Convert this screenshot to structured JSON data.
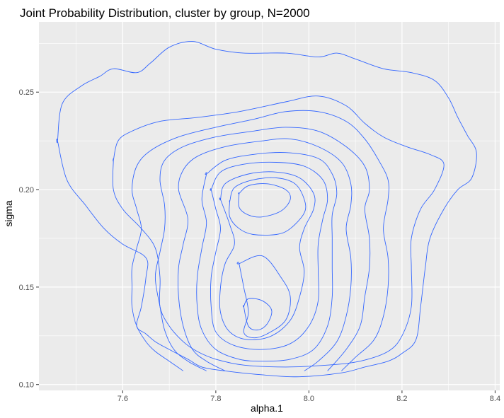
{
  "chart_data": {
    "type": "contour",
    "title": "Joint Probability Distribution, cluster by group, N=2000",
    "xlabel": "alpha.1",
    "ylabel": "sigma",
    "xlim": [
      7.42,
      8.41
    ],
    "ylim": [
      0.097,
      0.286
    ],
    "x_ticks": [
      7.6,
      7.8,
      8.0,
      8.2,
      8.4
    ],
    "x_tick_labels": [
      "7.6",
      "7.8",
      "8.0",
      "8.2",
      "8.4"
    ],
    "y_ticks": [
      0.1,
      0.15,
      0.2,
      0.25
    ],
    "y_tick_labels": [
      "0.10",
      "0.15",
      "0.20",
      "0.25"
    ],
    "grid": true,
    "background": "#ebebeb",
    "grid_color": "#ffffff",
    "line_color": "#3366ff",
    "contours": [
      {
        "closed": true,
        "points": [
          [
            7.46,
            0.225
          ],
          [
            7.47,
            0.244
          ],
          [
            7.51,
            0.253
          ],
          [
            7.55,
            0.258
          ],
          [
            7.58,
            0.262
          ],
          [
            7.63,
            0.26
          ],
          [
            7.66,
            0.265
          ],
          [
            7.7,
            0.273
          ],
          [
            7.75,
            0.276
          ],
          [
            7.8,
            0.272
          ],
          [
            7.86,
            0.27
          ],
          [
            7.95,
            0.27
          ],
          [
            8.02,
            0.268
          ],
          [
            8.06,
            0.27
          ],
          [
            8.1,
            0.267
          ],
          [
            8.16,
            0.262
          ],
          [
            8.22,
            0.26
          ],
          [
            8.27,
            0.256
          ],
          [
            8.3,
            0.247
          ],
          [
            8.32,
            0.237
          ],
          [
            8.34,
            0.228
          ],
          [
            8.36,
            0.219
          ],
          [
            8.35,
            0.206
          ],
          [
            8.32,
            0.2
          ],
          [
            8.29,
            0.19
          ],
          [
            8.26,
            0.175
          ],
          [
            8.25,
            0.16
          ],
          [
            8.24,
            0.14
          ],
          [
            8.23,
            0.123
          ],
          [
            8.2,
            0.116
          ],
          [
            8.17,
            0.112
          ],
          [
            8.12,
            0.109
          ],
          [
            8.07,
            0.106
          ],
          [
            7.98,
            0.104
          ],
          [
            7.9,
            0.105
          ],
          [
            7.82,
            0.107
          ],
          [
            7.77,
            0.109
          ],
          [
            7.74,
            0.113
          ],
          [
            7.7,
            0.118
          ],
          [
            7.67,
            0.122
          ],
          [
            7.65,
            0.126
          ],
          [
            7.63,
            0.13
          ],
          [
            7.64,
            0.14
          ],
          [
            7.65,
            0.155
          ],
          [
            7.65,
            0.165
          ],
          [
            7.6,
            0.172
          ],
          [
            7.56,
            0.18
          ],
          [
            7.52,
            0.192
          ],
          [
            7.48,
            0.205
          ],
          [
            7.46,
            0.225
          ]
        ]
      },
      {
        "closed": true,
        "points": [
          [
            7.58,
            0.215
          ],
          [
            7.59,
            0.225
          ],
          [
            7.62,
            0.23
          ],
          [
            7.68,
            0.235
          ],
          [
            7.76,
            0.237
          ],
          [
            7.85,
            0.24
          ],
          [
            7.95,
            0.245
          ],
          [
            8.02,
            0.248
          ],
          [
            8.08,
            0.243
          ],
          [
            8.12,
            0.234
          ],
          [
            8.16,
            0.227
          ],
          [
            8.21,
            0.222
          ],
          [
            8.26,
            0.218
          ],
          [
            8.29,
            0.213
          ],
          [
            8.27,
            0.2
          ],
          [
            8.24,
            0.19
          ],
          [
            8.22,
            0.175
          ],
          [
            8.22,
            0.16
          ],
          [
            8.22,
            0.14
          ],
          [
            8.2,
            0.125
          ],
          [
            8.17,
            0.117
          ],
          [
            8.11,
            0.112
          ],
          [
            8.04,
            0.11
          ],
          [
            7.95,
            0.109
          ],
          [
            7.86,
            0.11
          ],
          [
            7.8,
            0.113
          ],
          [
            7.76,
            0.117
          ],
          [
            7.73,
            0.122
          ],
          [
            7.7,
            0.13
          ],
          [
            7.68,
            0.14
          ],
          [
            7.68,
            0.155
          ],
          [
            7.67,
            0.17
          ],
          [
            7.64,
            0.18
          ],
          [
            7.6,
            0.19
          ],
          [
            7.58,
            0.2
          ],
          [
            7.58,
            0.215
          ]
        ]
      },
      {
        "closed": false,
        "points": [
          [
            7.73,
            0.107
          ],
          [
            7.7,
            0.112
          ],
          [
            7.67,
            0.117
          ],
          [
            7.65,
            0.122
          ],
          [
            7.63,
            0.13
          ],
          [
            7.62,
            0.14
          ],
          [
            7.62,
            0.15
          ],
          [
            7.62,
            0.16
          ],
          [
            7.63,
            0.17
          ],
          [
            7.64,
            0.18
          ],
          [
            7.63,
            0.19
          ],
          [
            7.62,
            0.2
          ],
          [
            7.63,
            0.212
          ],
          [
            7.66,
            0.22
          ],
          [
            7.72,
            0.227
          ],
          [
            7.8,
            0.232
          ],
          [
            7.88,
            0.236
          ],
          [
            7.95,
            0.24
          ],
          [
            8.02,
            0.24
          ],
          [
            8.08,
            0.235
          ],
          [
            8.12,
            0.226
          ],
          [
            8.15,
            0.215
          ],
          [
            8.17,
            0.205
          ],
          [
            8.17,
            0.195
          ],
          [
            8.16,
            0.18
          ],
          [
            8.17,
            0.165
          ],
          [
            8.17,
            0.15
          ],
          [
            8.16,
            0.135
          ],
          [
            8.14,
            0.123
          ],
          [
            8.1,
            0.114
          ],
          [
            8.07,
            0.107
          ]
        ]
      },
      {
        "closed": false,
        "points": [
          [
            7.78,
            0.107
          ],
          [
            7.74,
            0.112
          ],
          [
            7.71,
            0.118
          ],
          [
            7.69,
            0.128
          ],
          [
            7.68,
            0.14
          ],
          [
            7.67,
            0.155
          ],
          [
            7.68,
            0.168
          ],
          [
            7.69,
            0.18
          ],
          [
            7.69,
            0.192
          ],
          [
            7.68,
            0.205
          ],
          [
            7.69,
            0.215
          ],
          [
            7.73,
            0.222
          ],
          [
            7.8,
            0.227
          ],
          [
            7.88,
            0.23
          ],
          [
            7.95,
            0.232
          ],
          [
            8.02,
            0.23
          ],
          [
            8.08,
            0.222
          ],
          [
            8.12,
            0.212
          ],
          [
            8.13,
            0.2
          ],
          [
            8.12,
            0.19
          ],
          [
            8.13,
            0.175
          ],
          [
            8.13,
            0.16
          ],
          [
            8.12,
            0.145
          ],
          [
            8.11,
            0.13
          ],
          [
            8.08,
            0.118
          ],
          [
            8.04,
            0.107
          ]
        ]
      },
      {
        "closed": false,
        "points": [
          [
            7.82,
            0.107
          ],
          [
            7.78,
            0.112
          ],
          [
            7.75,
            0.118
          ],
          [
            7.73,
            0.13
          ],
          [
            7.72,
            0.145
          ],
          [
            7.72,
            0.16
          ],
          [
            7.73,
            0.172
          ],
          [
            7.74,
            0.185
          ],
          [
            7.72,
            0.2
          ],
          [
            7.73,
            0.21
          ],
          [
            7.76,
            0.217
          ],
          [
            7.82,
            0.222
          ],
          [
            7.9,
            0.225
          ],
          [
            7.96,
            0.226
          ],
          [
            8.02,
            0.222
          ],
          [
            8.07,
            0.214
          ],
          [
            8.09,
            0.203
          ],
          [
            8.09,
            0.192
          ],
          [
            8.08,
            0.18
          ],
          [
            8.09,
            0.165
          ],
          [
            8.09,
            0.15
          ],
          [
            8.08,
            0.135
          ],
          [
            8.06,
            0.122
          ],
          [
            8.02,
            0.112
          ],
          [
            7.99,
            0.107
          ]
        ]
      },
      {
        "closed": true,
        "points": [
          [
            7.78,
            0.208
          ],
          [
            7.82,
            0.215
          ],
          [
            7.88,
            0.218
          ],
          [
            7.95,
            0.219
          ],
          [
            8.02,
            0.216
          ],
          [
            8.05,
            0.208
          ],
          [
            8.06,
            0.198
          ],
          [
            8.05,
            0.187
          ],
          [
            8.05,
            0.175
          ],
          [
            8.05,
            0.16
          ],
          [
            8.05,
            0.145
          ],
          [
            8.04,
            0.13
          ],
          [
            8.01,
            0.118
          ],
          [
            7.96,
            0.113
          ],
          [
            7.9,
            0.112
          ],
          [
            7.85,
            0.113
          ],
          [
            7.8,
            0.118
          ],
          [
            7.77,
            0.128
          ],
          [
            7.76,
            0.14
          ],
          [
            7.76,
            0.155
          ],
          [
            7.77,
            0.17
          ],
          [
            7.78,
            0.183
          ],
          [
            7.77,
            0.195
          ],
          [
            7.78,
            0.208
          ]
        ]
      },
      {
        "closed": true,
        "points": [
          [
            7.79,
            0.2
          ],
          [
            7.81,
            0.209
          ],
          [
            7.86,
            0.213
          ],
          [
            7.93,
            0.214
          ],
          [
            7.99,
            0.212
          ],
          [
            8.03,
            0.205
          ],
          [
            8.04,
            0.195
          ],
          [
            8.03,
            0.185
          ],
          [
            8.02,
            0.172
          ],
          [
            8.02,
            0.158
          ],
          [
            8.02,
            0.143
          ],
          [
            8.0,
            0.13
          ],
          [
            7.96,
            0.121
          ],
          [
            7.9,
            0.118
          ],
          [
            7.84,
            0.12
          ],
          [
            7.8,
            0.127
          ],
          [
            7.79,
            0.14
          ],
          [
            7.79,
            0.155
          ],
          [
            7.8,
            0.168
          ],
          [
            7.81,
            0.18
          ],
          [
            7.8,
            0.19
          ],
          [
            7.79,
            0.2
          ]
        ]
      },
      {
        "closed": true,
        "points": [
          [
            7.81,
            0.195
          ],
          [
            7.82,
            0.203
          ],
          [
            7.87,
            0.208
          ],
          [
            7.93,
            0.209
          ],
          [
            7.98,
            0.206
          ],
          [
            8.01,
            0.198
          ],
          [
            8.01,
            0.19
          ],
          [
            7.99,
            0.18
          ],
          [
            7.98,
            0.17
          ],
          [
            7.99,
            0.158
          ],
          [
            7.98,
            0.145
          ],
          [
            7.96,
            0.133
          ],
          [
            7.92,
            0.125
          ],
          [
            7.87,
            0.123
          ],
          [
            7.83,
            0.127
          ],
          [
            7.81,
            0.137
          ],
          [
            7.81,
            0.15
          ],
          [
            7.82,
            0.162
          ],
          [
            7.84,
            0.172
          ],
          [
            7.83,
            0.182
          ],
          [
            7.81,
            0.195
          ]
        ]
      },
      {
        "closed": true,
        "points": [
          [
            7.83,
            0.194
          ],
          [
            7.84,
            0.201
          ],
          [
            7.88,
            0.205
          ],
          [
            7.93,
            0.206
          ],
          [
            7.97,
            0.203
          ],
          [
            7.99,
            0.195
          ],
          [
            7.99,
            0.188
          ],
          [
            7.96,
            0.18
          ],
          [
            7.93,
            0.177
          ],
          [
            7.88,
            0.177
          ],
          [
            7.85,
            0.18
          ],
          [
            7.83,
            0.186
          ],
          [
            7.83,
            0.194
          ]
        ]
      },
      {
        "closed": true,
        "points": [
          [
            7.85,
            0.162
          ],
          [
            7.86,
            0.15
          ],
          [
            7.87,
            0.137
          ],
          [
            7.86,
            0.127
          ],
          [
            7.88,
            0.124
          ],
          [
            7.91,
            0.126
          ],
          [
            7.95,
            0.133
          ],
          [
            7.96,
            0.145
          ],
          [
            7.94,
            0.155
          ],
          [
            7.9,
            0.166
          ],
          [
            7.85,
            0.162
          ]
        ]
      },
      {
        "closed": true,
        "points": [
          [
            7.85,
            0.198
          ],
          [
            7.87,
            0.202
          ],
          [
            7.91,
            0.203
          ],
          [
            7.95,
            0.2
          ],
          [
            7.96,
            0.195
          ],
          [
            7.94,
            0.189
          ],
          [
            7.9,
            0.186
          ],
          [
            7.87,
            0.187
          ],
          [
            7.85,
            0.191
          ],
          [
            7.85,
            0.198
          ]
        ]
      },
      {
        "closed": true,
        "points": [
          [
            7.86,
            0.14
          ],
          [
            7.87,
            0.13
          ],
          [
            7.89,
            0.128
          ],
          [
            7.91,
            0.131
          ],
          [
            7.92,
            0.138
          ],
          [
            7.9,
            0.143
          ],
          [
            7.87,
            0.144
          ],
          [
            7.86,
            0.14
          ]
        ]
      }
    ]
  }
}
